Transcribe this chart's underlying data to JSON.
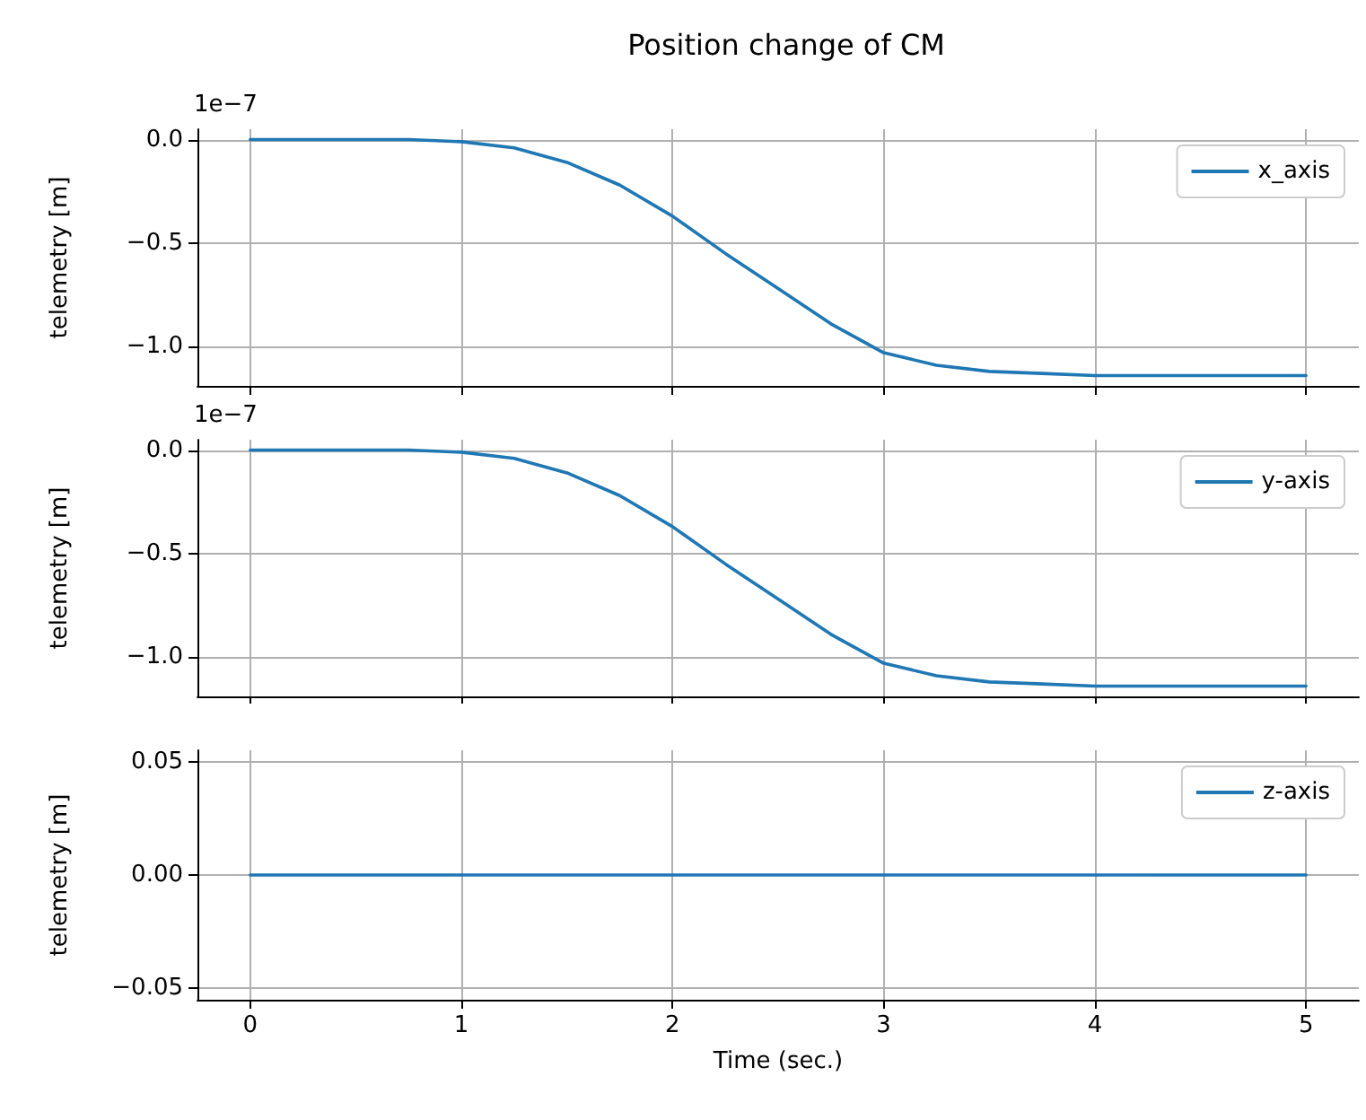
{
  "chart_data": [
    {
      "type": "line",
      "title": "Position change of CM",
      "ylabel": "telemetry [m]",
      "annotations": [
        "1e−7"
      ],
      "x": [
        0,
        0.25,
        0.5,
        0.75,
        1,
        1.25,
        1.5,
        1.75,
        2,
        2.25,
        2.5,
        2.75,
        3,
        3.25,
        3.5,
        3.75,
        4,
        4.25,
        4.5,
        4.75,
        5
      ],
      "series": [
        {
          "name": "x_axis",
          "color": "#1f77b4",
          "values": [
            0,
            0,
            0,
            0,
            -0.01,
            -0.04,
            -0.11,
            -0.22,
            -0.37,
            -0.55,
            -0.72,
            -0.89,
            -1.03,
            -1.09,
            -1.12,
            -1.13,
            -1.14,
            -1.14,
            -1.14,
            -1.14,
            -1.14
          ]
        }
      ],
      "xlim": [
        -0.25,
        5.25
      ],
      "xticks": [
        0,
        1,
        2,
        3,
        4,
        5
      ],
      "ylim": [
        -1.19,
        0.05
      ],
      "yticks": [
        {
          "value": 0,
          "label": "0.0"
        },
        {
          "value": -0.5,
          "label": "−0.5"
        },
        {
          "value": -1,
          "label": "−1.0"
        }
      ],
      "tick_labels": "y",
      "grid": true,
      "legend": "top right",
      "marker": "none",
      "line_style": "solid"
    },
    {
      "type": "line",
      "ylabel": "telemetry [m]",
      "annotations": [
        "1e−7"
      ],
      "x": [
        0,
        0.25,
        0.5,
        0.75,
        1,
        1.25,
        1.5,
        1.75,
        2,
        2.25,
        2.5,
        2.75,
        3,
        3.25,
        3.5,
        3.75,
        4,
        4.25,
        4.5,
        4.75,
        5
      ],
      "series": [
        {
          "name": "y-axis",
          "color": "#1f77b4",
          "values": [
            0,
            0,
            0,
            0,
            -0.01,
            -0.04,
            -0.11,
            -0.22,
            -0.37,
            -0.55,
            -0.72,
            -0.89,
            -1.03,
            -1.09,
            -1.12,
            -1.13,
            -1.14,
            -1.14,
            -1.14,
            -1.14,
            -1.14
          ]
        }
      ],
      "xlim": [
        -0.25,
        5.25
      ],
      "xticks": [
        0,
        1,
        2,
        3,
        4,
        5
      ],
      "ylim": [
        -1.19,
        0.05
      ],
      "yticks": [
        {
          "value": 0,
          "label": "0.0"
        },
        {
          "value": -0.5,
          "label": "−0.5"
        },
        {
          "value": -1,
          "label": "−1.0"
        }
      ],
      "tick_labels": "y",
      "grid": true,
      "legend": "top right",
      "marker": "none",
      "line_style": "solid"
    },
    {
      "type": "line",
      "ylabel": "telemetry [m]",
      "xlabel": "Time (sec.)",
      "x": [
        0,
        5
      ],
      "series": [
        {
          "name": "z-axis",
          "color": "#1f77b4",
          "values": [
            0,
            0
          ]
        }
      ],
      "xlim": [
        -0.25,
        5.25
      ],
      "xticks": [
        0,
        1,
        2,
        3,
        4,
        5
      ],
      "ylim": [
        -0.055,
        0.055
      ],
      "yticks": [
        {
          "value": -0.05,
          "label": "−0.05"
        },
        {
          "value": 0,
          "label": "0.00"
        },
        {
          "value": 0.05,
          "label": "0.05"
        }
      ],
      "grid": true,
      "legend": "top right",
      "marker": "none",
      "line_style": "solid"
    }
  ]
}
